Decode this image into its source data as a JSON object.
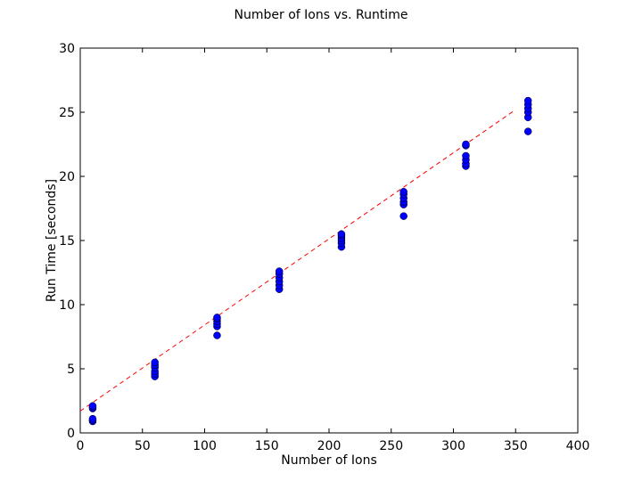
{
  "chart_data": {
    "type": "scatter",
    "title": "Number of Ions vs. Runtime",
    "xlabel": "Number of Ions",
    "ylabel": "Run Time [seconds]",
    "xlim": [
      0,
      400
    ],
    "ylim": [
      0,
      30
    ],
    "xticks": [
      0,
      50,
      100,
      150,
      200,
      250,
      300,
      350,
      400
    ],
    "yticks": [
      0,
      5,
      10,
      15,
      20,
      25,
      30
    ],
    "grid": false,
    "legend": "none",
    "series": [
      {
        "color": "#0000ff",
        "marker": "circle",
        "points": [
          [
            10,
            0.9
          ],
          [
            10,
            1.0
          ],
          [
            10,
            1.1
          ],
          [
            10,
            1.9
          ],
          [
            10,
            2.0
          ],
          [
            10,
            2.1
          ],
          [
            60,
            4.4
          ],
          [
            60,
            4.6
          ],
          [
            60,
            4.8
          ],
          [
            60,
            5.1
          ],
          [
            60,
            5.3
          ],
          [
            60,
            5.5
          ],
          [
            110,
            7.6
          ],
          [
            110,
            8.3
          ],
          [
            110,
            8.5
          ],
          [
            110,
            8.7
          ],
          [
            110,
            8.9
          ],
          [
            110,
            9.0
          ],
          [
            160,
            11.2
          ],
          [
            160,
            11.5
          ],
          [
            160,
            11.8
          ],
          [
            160,
            12.1
          ],
          [
            160,
            12.4
          ],
          [
            160,
            12.6
          ],
          [
            210,
            14.5
          ],
          [
            210,
            14.8
          ],
          [
            210,
            15.0
          ],
          [
            210,
            15.2
          ],
          [
            210,
            15.4
          ],
          [
            210,
            15.5
          ],
          [
            260,
            16.9
          ],
          [
            260,
            17.8
          ],
          [
            260,
            18.0
          ],
          [
            260,
            18.3
          ],
          [
            260,
            18.6
          ],
          [
            260,
            18.8
          ],
          [
            310,
            20.8
          ],
          [
            310,
            21.0
          ],
          [
            310,
            21.3
          ],
          [
            310,
            21.6
          ],
          [
            310,
            22.4
          ],
          [
            310,
            22.5
          ],
          [
            360,
            23.5
          ],
          [
            360,
            24.6
          ],
          [
            360,
            25.0
          ],
          [
            360,
            25.3
          ],
          [
            360,
            25.6
          ],
          [
            360,
            25.9
          ]
        ]
      }
    ],
    "fit_line": {
      "color": "#ff0000",
      "style": "dashed",
      "points": [
        [
          0,
          1.7
        ],
        [
          350,
          25.2
        ]
      ]
    }
  }
}
